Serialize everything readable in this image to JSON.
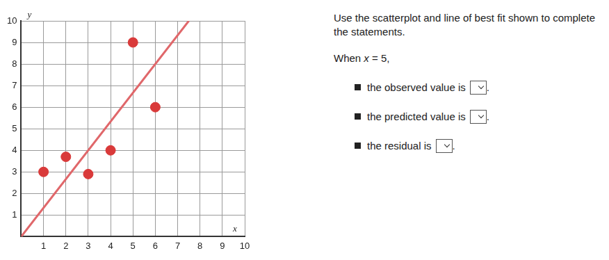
{
  "chart_data": {
    "type": "scatter",
    "x_label": "x",
    "y_label": "y",
    "series": [
      {
        "type": "scatter",
        "x": [
          1,
          2,
          3,
          4,
          5,
          6
        ],
        "values": [
          3,
          3.7,
          2.9,
          4,
          9,
          6
        ],
        "color": "#d93a3a",
        "marker": "circle"
      },
      {
        "type": "line",
        "x": [
          0,
          7.5
        ],
        "values": [
          0,
          10
        ],
        "color": "#e0676a",
        "line_style": "solid"
      }
    ],
    "xlim": [
      0,
      10
    ],
    "ylim": [
      0,
      10
    ],
    "xticks": [
      1,
      2,
      3,
      4,
      5,
      6,
      7,
      8,
      9,
      10
    ],
    "yticks": [
      1,
      2,
      3,
      4,
      5,
      6,
      7,
      8,
      9,
      10
    ],
    "grid": true
  },
  "panel": {
    "instruction": "Use the scatterplot and line of best fit shown to complete the statements.",
    "prompt_before": "When ",
    "prompt_var": "x",
    "prompt_after": " = 5,",
    "statements": [
      "the observed value is",
      "the predicted value is",
      "the residual is"
    ],
    "suffix": "."
  }
}
